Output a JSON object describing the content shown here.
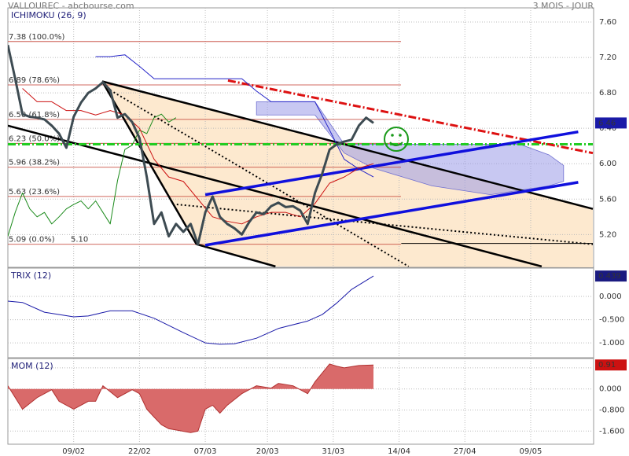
{
  "chart_data": [
    {
      "type": "line",
      "title": "VALLOUREC - abcbourse.com",
      "subtitle": "3 MOIS - JOUR",
      "indicator": "ICHIMOKU (26, 9)",
      "xlim": [
        0,
        80
      ],
      "ylim": [
        4.83,
        7.76
      ],
      "yticks": [
        {
          "value": 7.6,
          "label": "7.60"
        },
        {
          "value": 7.2,
          "label": "7.20"
        },
        {
          "value": 6.8,
          "label": "6.80"
        },
        {
          "value": 6.4,
          "label": "6.40"
        },
        {
          "value": 6.0,
          "label": "6.00"
        },
        {
          "value": 5.6,
          "label": "5.60"
        },
        {
          "value": 5.2,
          "label": "5.20"
        }
      ],
      "grid": true,
      "last_box_color": "#1a1aa8",
      "series": [
        {
          "color": "#3d4b52",
          "width": 3,
          "x": [
            0,
            1,
            2,
            3,
            4,
            5,
            6,
            7,
            8,
            9,
            10,
            11,
            12,
            13,
            14,
            15,
            16,
            17,
            18,
            19,
            20,
            21,
            22,
            23,
            24,
            25,
            26,
            27,
            28,
            29,
            30,
            31,
            32,
            33,
            34,
            35,
            36,
            37,
            38,
            39,
            40,
            41,
            42,
            43,
            44,
            45,
            46,
            47,
            48,
            49,
            50
          ],
          "values": [
            7.34,
            6.96,
            6.56,
            6.53,
            6.52,
            6.5,
            6.43,
            6.34,
            6.18,
            6.53,
            6.69,
            6.8,
            6.85,
            6.92,
            6.83,
            6.52,
            6.56,
            6.47,
            6.29,
            5.85,
            5.32,
            5.45,
            5.18,
            5.32,
            5.23,
            5.32,
            5.09,
            5.45,
            5.63,
            5.4,
            5.32,
            5.27,
            5.2,
            5.34,
            5.45,
            5.43,
            5.52,
            5.56,
            5.51,
            5.52,
            5.47,
            5.32,
            5.67,
            5.89,
            6.16,
            6.22,
            6.25,
            6.27,
            6.43,
            6.52,
            6.46
          ]
        },
        {
          "color": "#2424c8",
          "width": 1,
          "x": [
            12,
            14,
            16,
            18,
            20,
            22,
            24,
            26,
            28,
            30,
            32,
            34,
            36,
            38,
            40,
            42,
            44,
            46,
            48,
            50
          ],
          "values": [
            7.21,
            7.21,
            7.23,
            7.1,
            6.96,
            6.96,
            6.96,
            6.96,
            6.96,
            6.96,
            6.96,
            6.82,
            6.7,
            6.7,
            6.7,
            6.7,
            6.38,
            6.05,
            5.94,
            5.85
          ]
        },
        {
          "color": "#cc1111",
          "width": 1,
          "x": [
            2,
            4,
            6,
            8,
            10,
            12,
            14,
            16,
            18,
            20,
            22,
            24,
            26,
            28,
            30,
            32,
            34,
            36,
            38,
            40,
            42,
            44,
            46,
            48,
            50
          ],
          "values": [
            6.85,
            6.7,
            6.7,
            6.6,
            6.6,
            6.55,
            6.6,
            6.55,
            6.4,
            6.05,
            5.85,
            5.8,
            5.6,
            5.4,
            5.35,
            5.32,
            5.4,
            5.45,
            5.45,
            5.4,
            5.55,
            5.78,
            5.85,
            5.95,
            6.0
          ]
        },
        {
          "color": "#1a8a1a",
          "width": 1,
          "x": [
            0,
            1,
            2,
            3,
            4,
            5,
            6,
            7,
            8,
            9,
            10,
            11,
            12,
            13,
            14,
            15,
            16,
            17,
            18,
            19,
            20,
            21,
            22,
            23
          ],
          "values": [
            5.18,
            5.45,
            5.67,
            5.49,
            5.4,
            5.45,
            5.32,
            5.4,
            5.49,
            5.54,
            5.58,
            5.49,
            5.58,
            5.45,
            5.32,
            5.81,
            6.16,
            6.21,
            6.38,
            6.34,
            6.52,
            6.56,
            6.47,
            6.52
          ]
        }
      ],
      "cloud": {
        "color": "#9a9ae8",
        "x": [
          34,
          38,
          42,
          46,
          50,
          54,
          58,
          62,
          66,
          70,
          74,
          76
        ],
        "upper": [
          6.7,
          6.7,
          6.7,
          6.22,
          6.22,
          6.22,
          6.22,
          6.22,
          6.22,
          6.22,
          6.1,
          5.98
        ],
        "lower": [
          6.55,
          6.55,
          6.55,
          6.12,
          5.95,
          5.85,
          5.75,
          5.7,
          5.65,
          5.7,
          5.75,
          5.8
        ]
      },
      "fib_color": "#c0392b",
      "fib_levels": [
        {
          "value": 7.38,
          "label": "7.38 (100.0%)"
        },
        {
          "value": 6.89,
          "label": "6.89 (78.6%)"
        },
        {
          "value": 6.5,
          "label": "6.50 (61.8%)"
        },
        {
          "value": 6.23,
          "label": "6.23 (50.0%)"
        },
        {
          "value": 5.96,
          "label": "5.96 (38.2%)"
        },
        {
          "value": 5.63,
          "label": "5.63 (23.6%)"
        },
        {
          "value": 5.09,
          "label": "5.09 (0.0%)"
        }
      ],
      "low_label": "5.10",
      "channel_fill": "#fde9cf",
      "trend_lines": [
        {
          "color": "#000000",
          "width": 2.5,
          "style": "solid",
          "from": [
            12.9,
            6.93
          ],
          "to": [
            80,
            5.49
          ]
        },
        {
          "color": "#000000",
          "width": 2.5,
          "style": "solid",
          "from": [
            0,
            6.43
          ],
          "to": [
            73,
            4.84
          ]
        },
        {
          "color": "#000000",
          "width": 2.5,
          "style": "solid",
          "from": [
            12.9,
            6.93
          ],
          "to": [
            25.8,
            5.09
          ]
        },
        {
          "color": "#000000",
          "width": 2.5,
          "style": "solid",
          "from": [
            25.8,
            5.09
          ],
          "to": [
            36.6,
            4.84
          ]
        },
        {
          "color": "#000000",
          "width": 2,
          "style": "dotted",
          "from": [
            23.1,
            5.54
          ],
          "to": [
            80,
            5.09
          ]
        },
        {
          "color": "#000000",
          "width": 2,
          "style": "dotted",
          "from": [
            14,
            6.83
          ],
          "to": [
            54.8,
            4.84
          ]
        },
        {
          "color": "#000000",
          "width": 1,
          "style": "solid",
          "from": [
            53.8,
            5.1
          ],
          "to": [
            80,
            5.1
          ]
        },
        {
          "color": "#22cc22",
          "width": 3,
          "style": "dashdot",
          "from": [
            0,
            6.22
          ],
          "to": [
            80,
            6.22
          ]
        },
        {
          "color": "#dd1111",
          "width": 3,
          "style": "dashdot",
          "from": [
            30.1,
            6.94
          ],
          "to": [
            80,
            6.12
          ]
        },
        {
          "color": "#1010dd",
          "width": 3.5,
          "style": "solid",
          "from": [
            27,
            5.65
          ],
          "to": [
            78,
            6.36
          ]
        },
        {
          "color": "#1010dd",
          "width": 3.5,
          "style": "solid",
          "from": [
            27,
            5.08
          ],
          "to": [
            78,
            5.79
          ]
        }
      ]
    },
    {
      "type": "line",
      "indicator": "TRIX (12)",
      "xlim": [
        0,
        80
      ],
      "ylim": [
        -1.32,
        0.61
      ],
      "yticks": [
        {
          "value": 0,
          "label": "0.000"
        },
        {
          "value": -0.5,
          "label": "-0.500"
        },
        {
          "value": -1,
          "label": "-1.000"
        }
      ],
      "grid": true,
      "last_box_color": "#1a1a80",
      "series": [
        {
          "color": "#1a1aa8",
          "width": 1,
          "x": [
            0,
            2,
            5,
            9,
            11,
            14,
            17,
            20,
            24,
            27,
            29,
            31,
            34,
            37,
            41,
            43,
            45,
            47,
            50
          ],
          "values": [
            -0.1,
            -0.13,
            -0.34,
            -0.44,
            -0.42,
            -0.31,
            -0.31,
            -0.47,
            -0.78,
            -1.0,
            -1.03,
            -1.02,
            -0.9,
            -0.69,
            -0.53,
            -0.39,
            -0.14,
            0.15,
            0.439
          ]
        }
      ]
    },
    {
      "type": "area",
      "indicator": "MOM (12)",
      "xlim": [
        0,
        80
      ],
      "ylim": [
        -2.1,
        1.156
      ],
      "yticks": [
        {
          "value": 0.8,
          "label": "0.800"
        },
        {
          "value": 0,
          "label": "0.000"
        },
        {
          "value": -0.8,
          "label": "-0.800"
        },
        {
          "value": -1.6,
          "label": "-1.600"
        }
      ],
      "xticks": [
        {
          "value": 9,
          "label": "09/02"
        },
        {
          "value": 18,
          "label": "22/02"
        },
        {
          "value": 27,
          "label": "07/03"
        },
        {
          "value": 35.5,
          "label": "20/03"
        },
        {
          "value": 44.5,
          "label": "31/03"
        },
        {
          "value": 53.5,
          "label": "14/04"
        },
        {
          "value": 62.5,
          "label": "27/04"
        },
        {
          "value": 71.5,
          "label": "09/05"
        }
      ],
      "grid": true,
      "last_box_color": "#cc1111",
      "series": [
        {
          "color": "#d96a6a",
          "width": 1,
          "x": [
            0,
            2,
            4,
            6,
            7,
            9,
            11,
            12,
            13,
            15,
            17,
            18,
            19,
            20,
            21,
            22,
            25,
            26,
            27,
            28,
            29,
            30,
            32,
            34,
            36,
            37,
            39,
            41,
            42,
            44,
            45,
            46,
            48,
            50
          ],
          "values": [
            0.12,
            -0.77,
            -0.33,
            -0.03,
            -0.47,
            -0.77,
            -0.47,
            -0.47,
            0.12,
            -0.33,
            -0.03,
            -0.18,
            -0.77,
            -1.07,
            -1.36,
            -1.51,
            -1.66,
            -1.6,
            -0.77,
            -0.62,
            -0.92,
            -0.62,
            -0.18,
            0.12,
            0.03,
            0.21,
            0.12,
            -0.18,
            0.27,
            0.95,
            0.86,
            0.8,
            0.89,
            0.91
          ]
        }
      ]
    }
  ]
}
